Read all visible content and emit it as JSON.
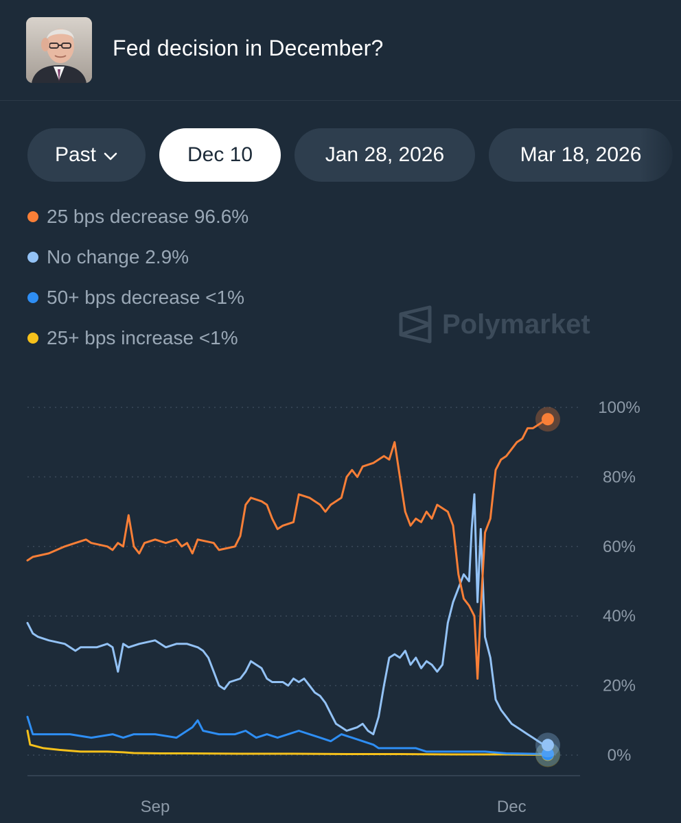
{
  "header": {
    "title": "Fed decision in December?",
    "avatar_icon": "person-photo"
  },
  "tabs": [
    {
      "label": "Past",
      "icon": "chevron-down-icon",
      "active": false
    },
    {
      "label": "Dec 10",
      "active": true
    },
    {
      "label": "Jan 28, 2026",
      "active": false
    },
    {
      "label": "Mar 18, 2026",
      "active": false
    }
  ],
  "legend": [
    {
      "label": "25 bps decrease 96.6%",
      "color": "#f97f37"
    },
    {
      "label": "No change 2.9%",
      "color": "#93c2f5"
    },
    {
      "label": "50+ bps decrease <1%",
      "color": "#2e8ef4"
    },
    {
      "label": "25+ bps increase <1%",
      "color": "#f6c11b"
    }
  ],
  "watermark": {
    "text": "Polymarket"
  },
  "chart_data": {
    "type": "line",
    "x_range": [
      0,
      100
    ],
    "x_ticks": [
      {
        "x": 24,
        "label": "Sep"
      },
      {
        "x": 91,
        "label": "Dec"
      }
    ],
    "ylim": [
      0,
      100
    ],
    "y_ticks": [
      {
        "value": 100,
        "label": "100%"
      },
      {
        "value": 80,
        "label": "80%"
      },
      {
        "value": 60,
        "label": "60%"
      },
      {
        "value": 40,
        "label": "40%"
      },
      {
        "value": 20,
        "label": "20%"
      },
      {
        "value": 0,
        "label": "0%"
      }
    ],
    "grid": true,
    "series": [
      {
        "name": "25 bps decrease",
        "color": "#f97f37",
        "points": [
          [
            0,
            56
          ],
          [
            1,
            57
          ],
          [
            4,
            58
          ],
          [
            7,
            60
          ],
          [
            9,
            61
          ],
          [
            11,
            62
          ],
          [
            12,
            61
          ],
          [
            15,
            60
          ],
          [
            16,
            59
          ],
          [
            17,
            61
          ],
          [
            18,
            60
          ],
          [
            19,
            69
          ],
          [
            20,
            60
          ],
          [
            21,
            58
          ],
          [
            22,
            61
          ],
          [
            24,
            62
          ],
          [
            26,
            61
          ],
          [
            28,
            62
          ],
          [
            29,
            60
          ],
          [
            30,
            61
          ],
          [
            31,
            58
          ],
          [
            32,
            62
          ],
          [
            35,
            61
          ],
          [
            36,
            59
          ],
          [
            39,
            60
          ],
          [
            40,
            63
          ],
          [
            41,
            72
          ],
          [
            42,
            74
          ],
          [
            44,
            73
          ],
          [
            45,
            72
          ],
          [
            46,
            68
          ],
          [
            47,
            65
          ],
          [
            48,
            66
          ],
          [
            50,
            67
          ],
          [
            51,
            75
          ],
          [
            53,
            74
          ],
          [
            55,
            72
          ],
          [
            56,
            70
          ],
          [
            57,
            72
          ],
          [
            59,
            74
          ],
          [
            60,
            80
          ],
          [
            61,
            82
          ],
          [
            62,
            80
          ],
          [
            63,
            83
          ],
          [
            65,
            84
          ],
          [
            67,
            86
          ],
          [
            68,
            85
          ],
          [
            69,
            90
          ],
          [
            70,
            80
          ],
          [
            71,
            70
          ],
          [
            72,
            66
          ],
          [
            73,
            68
          ],
          [
            74,
            67
          ],
          [
            75,
            70
          ],
          [
            76,
            68
          ],
          [
            77,
            72
          ],
          [
            79,
            70
          ],
          [
            80,
            66
          ],
          [
            81,
            52
          ],
          [
            82,
            45
          ],
          [
            83,
            43
          ],
          [
            84,
            40
          ],
          [
            84.6,
            22
          ],
          [
            85.2,
            42
          ],
          [
            86,
            64
          ],
          [
            87,
            68
          ],
          [
            88,
            82
          ],
          [
            89,
            85
          ],
          [
            90,
            86
          ],
          [
            91,
            88
          ],
          [
            92,
            90
          ],
          [
            93,
            91
          ],
          [
            94,
            94
          ],
          [
            95,
            94
          ],
          [
            96,
            95
          ],
          [
            97,
            96
          ],
          [
            97.8,
            96.6
          ]
        ]
      },
      {
        "name": "No change",
        "color": "#93c2f5",
        "points": [
          [
            0,
            38
          ],
          [
            1,
            35
          ],
          [
            2,
            34
          ],
          [
            4,
            33
          ],
          [
            7,
            32
          ],
          [
            9,
            30
          ],
          [
            10,
            31
          ],
          [
            13,
            31
          ],
          [
            15,
            32
          ],
          [
            16,
            31
          ],
          [
            17,
            24
          ],
          [
            18,
            32
          ],
          [
            19,
            31
          ],
          [
            21,
            32
          ],
          [
            24,
            33
          ],
          [
            26,
            31
          ],
          [
            28,
            32
          ],
          [
            30,
            32
          ],
          [
            32,
            31
          ],
          [
            33,
            30
          ],
          [
            34,
            28
          ],
          [
            35,
            24
          ],
          [
            36,
            20
          ],
          [
            37,
            19
          ],
          [
            38,
            21
          ],
          [
            40,
            22
          ],
          [
            41,
            24
          ],
          [
            42,
            27
          ],
          [
            43,
            26
          ],
          [
            44,
            25
          ],
          [
            45,
            22
          ],
          [
            46,
            21
          ],
          [
            48,
            21
          ],
          [
            49,
            20
          ],
          [
            50,
            22
          ],
          [
            51,
            21
          ],
          [
            52,
            22
          ],
          [
            53,
            20
          ],
          [
            54,
            18
          ],
          [
            55,
            17
          ],
          [
            56,
            15
          ],
          [
            57,
            12
          ],
          [
            58,
            9
          ],
          [
            59,
            8
          ],
          [
            60,
            7
          ],
          [
            62,
            8
          ],
          [
            63,
            9
          ],
          [
            64,
            7
          ],
          [
            65,
            6
          ],
          [
            66,
            11
          ],
          [
            67,
            20
          ],
          [
            68,
            28
          ],
          [
            69,
            29
          ],
          [
            70,
            28
          ],
          [
            71,
            30
          ],
          [
            72,
            26
          ],
          [
            73,
            28
          ],
          [
            74,
            25
          ],
          [
            75,
            27
          ],
          [
            76,
            26
          ],
          [
            77,
            24
          ],
          [
            78,
            26
          ],
          [
            79,
            38
          ],
          [
            80,
            44
          ],
          [
            81,
            48
          ],
          [
            82,
            52
          ],
          [
            83,
            50
          ],
          [
            83.5,
            65
          ],
          [
            84.0,
            75
          ],
          [
            84.6,
            44
          ],
          [
            85.2,
            65
          ],
          [
            86,
            34
          ],
          [
            87,
            28
          ],
          [
            88,
            16
          ],
          [
            89,
            13
          ],
          [
            90,
            11
          ],
          [
            91,
            9
          ],
          [
            92,
            8
          ],
          [
            93,
            7
          ],
          [
            94,
            6
          ],
          [
            95,
            5
          ],
          [
            96,
            4
          ],
          [
            97,
            3
          ],
          [
            97.8,
            2.9
          ]
        ]
      },
      {
        "name": "50+ bps decrease",
        "color": "#2e8ef4",
        "points": [
          [
            0,
            11
          ],
          [
            1,
            6
          ],
          [
            3,
            6
          ],
          [
            8,
            6
          ],
          [
            12,
            5
          ],
          [
            16,
            6
          ],
          [
            18,
            5
          ],
          [
            20,
            6
          ],
          [
            24,
            6
          ],
          [
            28,
            5
          ],
          [
            31,
            8
          ],
          [
            32,
            10
          ],
          [
            33,
            7
          ],
          [
            36,
            6
          ],
          [
            39,
            6
          ],
          [
            41,
            7
          ],
          [
            43,
            5
          ],
          [
            45,
            6
          ],
          [
            47,
            5
          ],
          [
            49,
            6
          ],
          [
            51,
            7
          ],
          [
            53,
            6
          ],
          [
            55,
            5
          ],
          [
            57,
            4
          ],
          [
            59,
            6
          ],
          [
            61,
            5
          ],
          [
            63,
            4
          ],
          [
            65,
            3
          ],
          [
            66,
            2
          ],
          [
            68,
            2
          ],
          [
            70,
            2
          ],
          [
            73,
            2
          ],
          [
            75,
            1
          ],
          [
            78,
            1
          ],
          [
            80,
            1
          ],
          [
            84,
            1
          ],
          [
            86,
            1
          ],
          [
            90,
            0.5
          ],
          [
            94,
            0.4
          ],
          [
            97.8,
            0.3
          ]
        ]
      },
      {
        "name": "25+ bps increase",
        "color": "#f6c11b",
        "points": [
          [
            0,
            7
          ],
          [
            0.5,
            3
          ],
          [
            3,
            2
          ],
          [
            6,
            1.5
          ],
          [
            10,
            1
          ],
          [
            15,
            1
          ],
          [
            18,
            0.8
          ],
          [
            20,
            0.6
          ],
          [
            25,
            0.5
          ],
          [
            30,
            0.5
          ],
          [
            40,
            0.4
          ],
          [
            50,
            0.4
          ],
          [
            60,
            0.3
          ],
          [
            70,
            0.3
          ],
          [
            80,
            0.2
          ],
          [
            90,
            0.2
          ],
          [
            97.8,
            0.1
          ]
        ]
      }
    ]
  }
}
